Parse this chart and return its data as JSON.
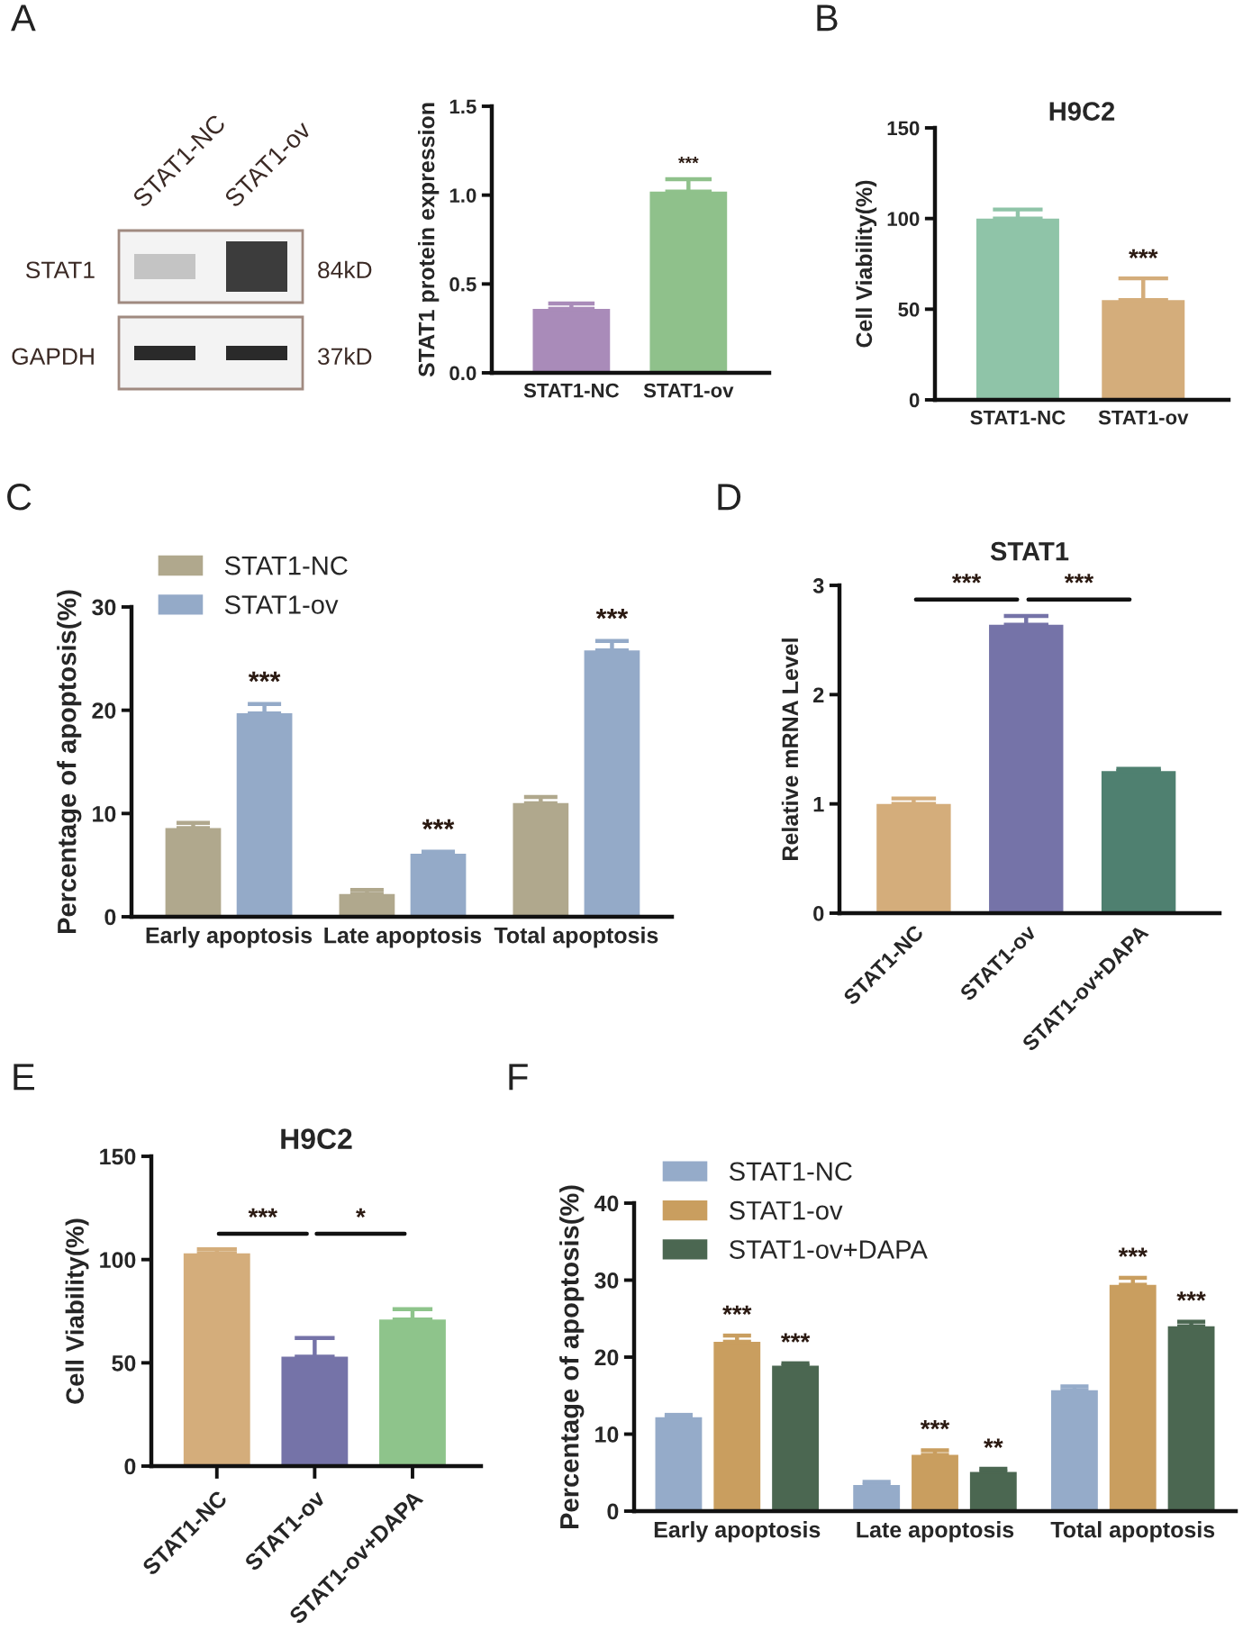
{
  "chart_data": [
    {
      "type": "other",
      "categories": [
        "STAT1-NC",
        "STAT1-ov"
      ],
      "y_categories": [
        "STAT1",
        "GAPDH"
      ],
      "y2_categories": [
        "84kD",
        "37kD"
      ],
      "annotations": [
        "A"
      ]
    },
    {
      "type": "bar",
      "ylabel": "STAT1 protein expression",
      "categories": [
        "STAT1-NC",
        "STAT1-ov"
      ],
      "values": [
        0.36,
        1.02
      ],
      "errors": [
        0.03,
        0.07
      ],
      "colors": [
        "#a98bb9",
        "#8fc18b"
      ],
      "value_labels": [
        null,
        "***"
      ],
      "ylim": [
        0,
        1.5
      ],
      "yticks": [
        {
          "value": 0,
          "label": "0.0"
        },
        0.5,
        {
          "value": 1,
          "label": "1.0"
        },
        1.5
      ]
    },
    {
      "type": "bar",
      "title": "H9C2",
      "ylabel": "Cell Viability(%)",
      "categories": [
        "STAT1-NC",
        "STAT1-ov"
      ],
      "values": [
        100,
        55
      ],
      "errors": [
        5,
        12
      ],
      "colors": [
        "#8fc4a8",
        "#d4ad7b"
      ],
      "value_labels": [
        null,
        "***"
      ],
      "ylim": [
        0,
        150
      ],
      "yticks": [
        0,
        50,
        100,
        150
      ],
      "annotations": [
        "B"
      ]
    },
    {
      "type": "bar",
      "ylabel": "Percentage of apoptosis(%)",
      "categories": [
        "Early apoptosis",
        "Late apoptosis",
        "Total apoptosis"
      ],
      "series": [
        {
          "name": "STAT1-NC",
          "color": "#b0a88d",
          "values": [
            8.6,
            2.2,
            11.0
          ],
          "errors": [
            0.5,
            0.4,
            0.6
          ]
        },
        {
          "name": "STAT1-ov",
          "color": "#94aac8",
          "values": [
            19.7,
            6.1,
            25.8
          ],
          "errors": [
            0.9,
            0.2,
            0.9
          ],
          "value_labels": [
            "***",
            "***",
            "***"
          ]
        }
      ],
      "ylim": [
        0,
        30
      ],
      "yticks": [
        0,
        10,
        20,
        30
      ],
      "legend": "top left",
      "annotations": [
        "C"
      ]
    },
    {
      "type": "bar",
      "title": "STAT1",
      "ylabel": "Relative mRNA Level",
      "categories": [
        "STAT1-NC",
        "STAT1-ov",
        "STAT1-ov+DAPA"
      ],
      "values": [
        1.0,
        2.64,
        1.3
      ],
      "errors": [
        0.05,
        0.08,
        0.02
      ],
      "colors": [
        "#d4ad7b",
        "#7573a8",
        "#4f8070"
      ],
      "ylim": [
        0,
        3
      ],
      "yticks": [
        0,
        1,
        2,
        3
      ],
      "annotations": [
        "D",
        "***",
        "***"
      ]
    },
    {
      "type": "bar",
      "title": "H9C2",
      "ylabel": "Cell Viability(%)",
      "categories": [
        "STAT1-NC",
        "STAT1-ov",
        "STAT1-ov+DAPA"
      ],
      "values": [
        103,
        53,
        71
      ],
      "errors": [
        2,
        9,
        5
      ],
      "colors": [
        "#d4ad7b",
        "#7573a8",
        "#8ec48b"
      ],
      "ylim": [
        0,
        150
      ],
      "yticks": [
        0,
        50,
        100,
        150
      ],
      "annotations": [
        "E",
        "***",
        "*"
      ]
    },
    {
      "type": "bar",
      "ylabel": "Percentage of apoptosis(%)",
      "categories": [
        "Early apoptosis",
        "Late apoptosis",
        "Total apoptosis"
      ],
      "series": [
        {
          "name": "STAT1-NC",
          "color": "#95abc9",
          "values": [
            12.2,
            3.4,
            15.7
          ],
          "errors": [
            0.3,
            0.4,
            0.5
          ]
        },
        {
          "name": "STAT1-ov",
          "color": "#c99e5f",
          "values": [
            22.0,
            7.3,
            29.4
          ],
          "errors": [
            0.8,
            0.6,
            0.9
          ],
          "value_labels": [
            "***",
            "***",
            "***"
          ]
        },
        {
          "name": "STAT1-ov+DAPA",
          "color": "#4b6751",
          "values": [
            18.9,
            5.1,
            24.0
          ],
          "errors": [
            0.3,
            0.4,
            0.6
          ],
          "value_labels": [
            "***",
            "**",
            "***"
          ]
        }
      ],
      "ylim": [
        0,
        40
      ],
      "yticks": [
        0,
        10,
        20,
        30,
        40
      ],
      "legend": "top left",
      "annotations": [
        "F"
      ]
    }
  ]
}
